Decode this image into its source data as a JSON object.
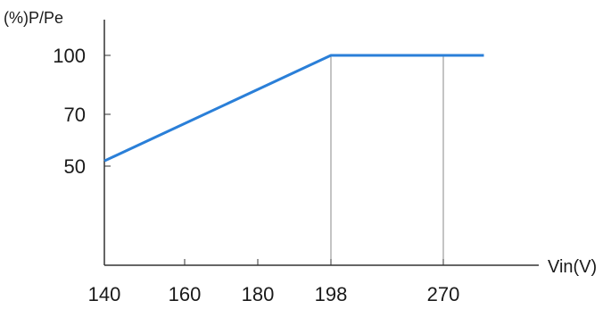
{
  "chart_data": {
    "type": "line",
    "ylabel": "(%)P/Pe",
    "xlabel": "Vin(V)",
    "x_ticks": [
      {
        "value": 140,
        "label": "140"
      },
      {
        "value": 160,
        "label": "160"
      },
      {
        "value": 180,
        "label": "180"
      },
      {
        "value": 198,
        "label": "198"
      },
      {
        "value": 270,
        "label": "270"
      }
    ],
    "y_ticks": [
      {
        "value": 50,
        "label": "50"
      },
      {
        "value": 70,
        "label": "70"
      },
      {
        "value": 100,
        "label": "100"
      }
    ],
    "series": [
      {
        "color": "#2a7fd8",
        "points": [
          {
            "x": 140,
            "y": 52
          },
          {
            "x": 198,
            "y": 100
          },
          {
            "x": 270,
            "y": 100
          },
          {
            "x": 296,
            "y": 100
          }
        ]
      }
    ],
    "reference_lines_x": [
      198,
      270
    ],
    "grid": false
  }
}
